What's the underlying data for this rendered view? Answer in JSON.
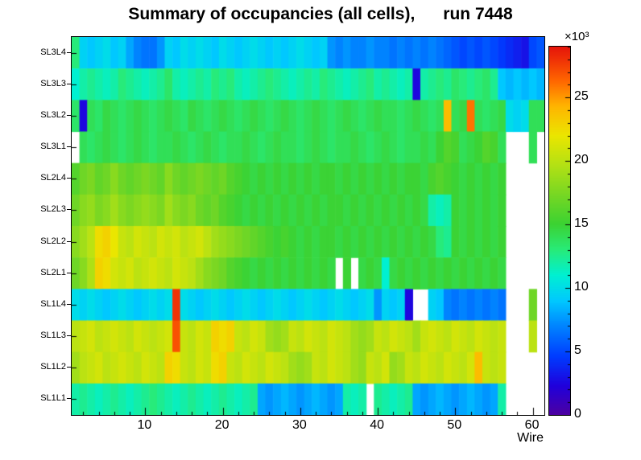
{
  "chart_data": {
    "type": "heatmap",
    "title": "Summary of occupancies (all cells),      run 7448",
    "xlabel": "Wire",
    "ylabel": "",
    "x_ticks": [
      10,
      20,
      30,
      40,
      50,
      60
    ],
    "n_bins_x": 61,
    "x_range": [
      1,
      61
    ],
    "rows_order": "top_to_bottom",
    "value_units": "counts, in thousands (×10³)",
    "colorbar": {
      "ticks": [
        0,
        5,
        10,
        15,
        20,
        25
      ],
      "exponent_label": "×10³",
      "zmin": 0,
      "zmax": 29,
      "position": "right"
    },
    "palette_stops": [
      {
        "t": 0.0,
        "rgb": [
          78,
          0,
          160
        ]
      },
      {
        "t": 0.08,
        "rgb": [
          32,
          0,
          220
        ]
      },
      {
        "t": 0.16,
        "rgb": [
          0,
          60,
          255
        ]
      },
      {
        "t": 0.24,
        "rgb": [
          0,
          130,
          255
        ]
      },
      {
        "t": 0.31,
        "rgb": [
          0,
          200,
          255
        ]
      },
      {
        "t": 0.38,
        "rgb": [
          0,
          240,
          210
        ]
      },
      {
        "t": 0.45,
        "rgb": [
          40,
          235,
          120
        ]
      },
      {
        "t": 0.52,
        "rgb": [
          60,
          210,
          50
        ]
      },
      {
        "t": 0.6,
        "rgb": [
          120,
          215,
          35
        ]
      },
      {
        "t": 0.68,
        "rgb": [
          180,
          225,
          20
        ]
      },
      {
        "t": 0.76,
        "rgb": [
          235,
          230,
          0
        ]
      },
      {
        "t": 0.84,
        "rgb": [
          255,
          180,
          0
        ]
      },
      {
        "t": 0.91,
        "rgb": [
          255,
          100,
          0
        ]
      },
      {
        "t": 1.0,
        "rgb": [
          230,
          20,
          10
        ]
      }
    ],
    "rows": [
      {
        "label": "SL3L4",
        "values": [
          13,
          9.5,
          9,
          9.5,
          10,
          9,
          9.5,
          8,
          7,
          6.5,
          6.5,
          7.5,
          9.5,
          9,
          10,
          9.5,
          10,
          9.5,
          9,
          10,
          9.5,
          9,
          9.5,
          10,
          9.5,
          9,
          9.5,
          9,
          9.5,
          10,
          9.5,
          9,
          9.5,
          7.5,
          7,
          7.5,
          7,
          7,
          7.5,
          7,
          7,
          6.5,
          7,
          6.5,
          7,
          6.5,
          7,
          6.5,
          6,
          5.5,
          5,
          5.5,
          5,
          5.5,
          5,
          4.5,
          4,
          3.5,
          3,
          5,
          5.5
        ]
      },
      {
        "label": "SL3L3",
        "values": [
          11,
          12,
          12.5,
          12,
          11.5,
          12,
          13,
          12.5,
          12,
          11.5,
          12,
          12.5,
          13.5,
          12,
          11.5,
          12,
          12.5,
          12,
          13,
          12.5,
          13,
          12,
          11.5,
          12,
          12.5,
          13,
          12.5,
          12,
          11.5,
          12,
          12.5,
          12,
          13,
          12.5,
          12,
          11.5,
          12,
          12.5,
          13,
          12,
          12.5,
          12,
          11.5,
          12,
          2.5,
          12,
          12.5,
          13,
          12.5,
          13.5,
          13,
          12.5,
          13,
          13.5,
          12.5,
          9,
          8.5,
          9,
          8.5,
          9,
          8.5
        ]
      },
      {
        "label": "SL3L2",
        "values": [
          13.5,
          2.5,
          14,
          13.5,
          14.5,
          14,
          13.5,
          14,
          14.5,
          14,
          13.5,
          14,
          14.5,
          14,
          13.5,
          14.5,
          14,
          13.5,
          14,
          14.5,
          14,
          13.5,
          14,
          14.5,
          14,
          13.5,
          14,
          14.5,
          14,
          13.5,
          14,
          14.5,
          14,
          13.5,
          14,
          14.5,
          14,
          13.5,
          14,
          14.5,
          14,
          14,
          13.5,
          14,
          14.5,
          14,
          13.5,
          14,
          24,
          14,
          14.5,
          26,
          14,
          13.5,
          14,
          14.5,
          10,
          9.5,
          10,
          14,
          14
        ]
      },
      {
        "label": "SL3L1",
        "values": [
          null,
          14,
          13.5,
          14,
          14.5,
          14,
          13.5,
          14,
          14.5,
          14,
          13.5,
          14,
          14,
          14.5,
          14,
          13.5,
          14,
          14.5,
          14,
          13.5,
          14,
          14,
          14.5,
          14,
          13.5,
          14,
          14.5,
          14,
          14,
          13.5,
          14,
          14.5,
          14,
          13.5,
          14,
          14,
          14.5,
          14,
          13.5,
          14,
          14.5,
          14,
          13.5,
          14,
          14,
          14.5,
          14,
          15,
          16,
          15.5,
          14,
          14.5,
          15,
          16,
          15.5,
          14,
          null,
          null,
          null,
          14,
          null
        ]
      },
      {
        "label": "SL2L4",
        "values": [
          16,
          17,
          17.5,
          16.5,
          17,
          18,
          17,
          16.5,
          17,
          17.5,
          17,
          16.5,
          18,
          17,
          16.5,
          17,
          17.5,
          17,
          16.5,
          17,
          16,
          15.5,
          15,
          14.5,
          15,
          14.5,
          15,
          14.5,
          15,
          14.5,
          15,
          14.5,
          15,
          15,
          14.5,
          15,
          14.5,
          15,
          14.5,
          15,
          14.5,
          15,
          14.5,
          15,
          15,
          14.5,
          15.5,
          16,
          15.5,
          15,
          14.5,
          15,
          14.5,
          15,
          14.5,
          15,
          null,
          null,
          null,
          null,
          null
        ]
      },
      {
        "label": "SL2L3",
        "values": [
          17,
          18,
          18.5,
          17.5,
          18,
          19,
          18,
          17.5,
          18,
          18.5,
          18,
          17.5,
          19,
          18,
          17.5,
          18,
          17,
          16.5,
          17,
          16,
          15.5,
          15,
          14.5,
          15,
          14.5,
          15,
          14.5,
          15,
          14.5,
          15,
          14.5,
          15,
          14.5,
          15,
          15,
          14.5,
          15,
          14.5,
          15,
          14.5,
          15,
          14.5,
          15,
          14.5,
          15,
          14.5,
          12,
          11.5,
          12,
          15,
          14.5,
          15,
          14.5,
          15,
          14.5,
          15,
          null,
          null,
          null,
          null,
          null
        ]
      },
      {
        "label": "SL2L2",
        "values": [
          18,
          19,
          20,
          22.5,
          23,
          22,
          20.5,
          20,
          21,
          20.5,
          20,
          21,
          20.5,
          21,
          20,
          20.5,
          21,
          20,
          19,
          18.5,
          18,
          17.5,
          17,
          16.5,
          16,
          15.5,
          15,
          15.5,
          15,
          14.5,
          15,
          14.5,
          15,
          15,
          14.5,
          15,
          14.5,
          15,
          14.5,
          15,
          14.5,
          15,
          14.5,
          15,
          14.5,
          15,
          14.5,
          13,
          12.5,
          15,
          14.5,
          15,
          14.5,
          15,
          14.5,
          15,
          null,
          null,
          null,
          null,
          null
        ]
      },
      {
        "label": "SL2L1",
        "values": [
          17,
          18,
          19.5,
          23,
          22.5,
          21,
          20.5,
          21,
          20,
          20.5,
          21,
          20.5,
          20,
          21,
          20.5,
          20,
          19,
          18,
          17.5,
          17,
          16,
          15.5,
          15,
          14.5,
          15,
          14.5,
          15,
          14.5,
          15,
          14.5,
          15,
          14.5,
          15,
          14.5,
          null,
          15,
          null,
          14.5,
          15,
          14.5,
          11,
          14.5,
          15,
          14.5,
          15,
          14.5,
          15,
          14.5,
          15,
          14.5,
          15,
          14.5,
          15,
          14.5,
          15,
          14.5,
          null,
          null,
          null,
          null,
          null
        ]
      },
      {
        "label": "SL1L4",
        "values": [
          10,
          9.5,
          10,
          9.5,
          9,
          9.5,
          10,
          9.5,
          9,
          9.5,
          10,
          9.5,
          10,
          28,
          10,
          9.5,
          9,
          9.5,
          10,
          9.5,
          9,
          9.5,
          10,
          9.5,
          9,
          9.5,
          10,
          9.5,
          9,
          9.5,
          10,
          9.5,
          9,
          9.5,
          10,
          9.5,
          9,
          9.5,
          10,
          7.5,
          9.5,
          9,
          9.5,
          2.5,
          null,
          null,
          9.5,
          9,
          7,
          6.5,
          7,
          6.5,
          7,
          6.5,
          7,
          6.5,
          null,
          null,
          null,
          17,
          null
        ]
      },
      {
        "label": "SL1L3",
        "values": [
          20,
          20.5,
          21,
          20,
          20.5,
          21,
          20.5,
          20,
          21,
          20.5,
          20,
          20.5,
          21,
          27,
          20.5,
          20,
          21,
          20.5,
          23,
          22.5,
          23,
          20.5,
          20,
          21,
          20.5,
          19,
          18.5,
          19,
          20.5,
          20,
          21,
          20.5,
          20,
          21,
          20.5,
          20,
          19,
          18.5,
          19,
          20.5,
          20,
          21,
          20.5,
          20,
          19,
          20.5,
          21,
          20.5,
          20,
          21,
          20.5,
          20,
          21,
          20.5,
          20,
          20.5,
          null,
          null,
          null,
          20,
          null
        ]
      },
      {
        "label": "SL1L2",
        "values": [
          19,
          20,
          20.5,
          21,
          20,
          20.5,
          21,
          20.5,
          20,
          21,
          20.5,
          20,
          23,
          22.5,
          20.5,
          20,
          21,
          20.5,
          22.5,
          23,
          20.5,
          20,
          21,
          20.5,
          20,
          21,
          20.5,
          20,
          19,
          18.5,
          19,
          20.5,
          20,
          21,
          20.5,
          20,
          19,
          18.5,
          20.5,
          20,
          21,
          18.5,
          19,
          20.5,
          20,
          21,
          20.5,
          20,
          21,
          20.5,
          20,
          21,
          24,
          20.5,
          20,
          20.5,
          null,
          null,
          null,
          null,
          null
        ]
      },
      {
        "label": "SL1L1",
        "values": [
          12,
          12.5,
          12,
          11.5,
          12,
          12.5,
          12,
          11.5,
          12,
          12.5,
          13,
          12.5,
          12,
          11.5,
          12,
          12.5,
          12,
          11.5,
          12,
          12.5,
          12,
          11.5,
          12,
          12.5,
          8,
          7.5,
          8,
          8.5,
          8,
          7.5,
          8,
          8.5,
          8,
          7.5,
          8,
          12,
          11.5,
          12,
          null,
          12.5,
          12,
          11.5,
          12,
          12.5,
          8,
          7.5,
          8,
          8.5,
          8,
          7.5,
          8,
          8.5,
          8,
          7.5,
          8,
          12,
          null,
          null,
          null,
          null,
          null
        ]
      }
    ]
  }
}
